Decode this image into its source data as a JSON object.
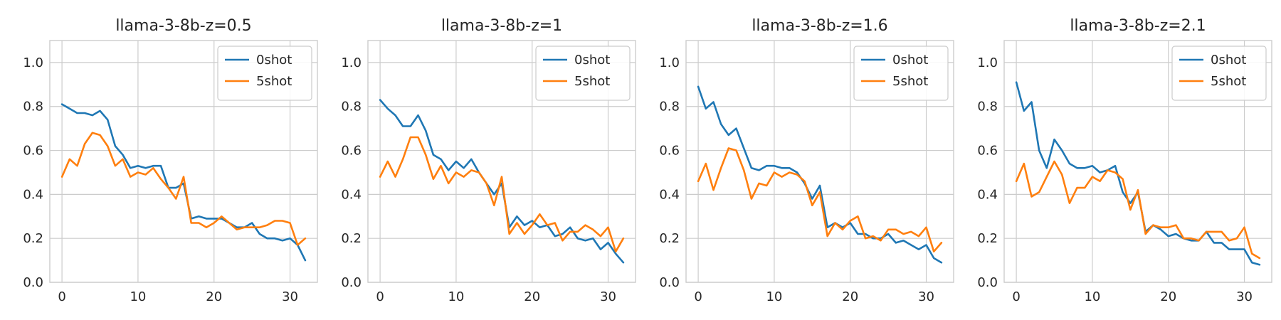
{
  "chart_data": [
    {
      "type": "line",
      "title": "llama-3-8b-z=0.5",
      "xlabel": "",
      "ylabel": "",
      "xlim": [
        -1.6,
        33.6
      ],
      "ylim": [
        0,
        1.1
      ],
      "xticks": [
        0,
        10,
        20,
        30
      ],
      "yticks": [
        0.0,
        0.2,
        0.4,
        0.6,
        0.8,
        1.0
      ],
      "ytick_labels": [
        "0.0",
        "0.2",
        "0.4",
        "0.6",
        "0.8",
        "1.0"
      ],
      "grid": true,
      "legend_position": "top-right",
      "series": [
        {
          "name": "0shot",
          "color": "#1f77b4",
          "values": [
            0.81,
            0.79,
            0.77,
            0.77,
            0.76,
            0.78,
            0.74,
            0.62,
            0.58,
            0.52,
            0.53,
            0.52,
            0.53,
            0.53,
            0.43,
            0.43,
            0.45,
            0.29,
            0.3,
            0.29,
            0.29,
            0.29,
            0.27,
            0.25,
            0.25,
            0.27,
            0.22,
            0.2,
            0.2,
            0.19,
            0.2,
            0.17,
            0.1
          ]
        },
        {
          "name": "5shot",
          "color": "#ff7f0e",
          "values": [
            0.48,
            0.56,
            0.53,
            0.63,
            0.68,
            0.67,
            0.62,
            0.53,
            0.56,
            0.48,
            0.5,
            0.49,
            0.52,
            0.47,
            0.43,
            0.38,
            0.48,
            0.27,
            0.27,
            0.25,
            0.27,
            0.3,
            0.27,
            0.24,
            0.25,
            0.25,
            0.25,
            0.26,
            0.28,
            0.28,
            0.27,
            0.17,
            0.2
          ]
        }
      ]
    },
    {
      "type": "line",
      "title": "llama-3-8b-z=1",
      "xlabel": "",
      "ylabel": "",
      "xlim": [
        -1.6,
        33.6
      ],
      "ylim": [
        0,
        1.1
      ],
      "xticks": [
        0,
        10,
        20,
        30
      ],
      "yticks": [
        0.0,
        0.2,
        0.4,
        0.6,
        0.8,
        1.0
      ],
      "ytick_labels": [
        "0.0",
        "0.2",
        "0.4",
        "0.6",
        "0.8",
        "1.0"
      ],
      "grid": true,
      "legend_position": "top-right",
      "series": [
        {
          "name": "0shot",
          "color": "#1f77b4",
          "values": [
            0.83,
            0.79,
            0.76,
            0.71,
            0.71,
            0.76,
            0.69,
            0.58,
            0.56,
            0.51,
            0.55,
            0.52,
            0.56,
            0.5,
            0.45,
            0.4,
            0.45,
            0.25,
            0.3,
            0.26,
            0.28,
            0.25,
            0.26,
            0.21,
            0.22,
            0.25,
            0.2,
            0.19,
            0.2,
            0.15,
            0.18,
            0.13,
            0.09
          ]
        },
        {
          "name": "5shot",
          "color": "#ff7f0e",
          "values": [
            0.48,
            0.55,
            0.48,
            0.56,
            0.66,
            0.66,
            0.58,
            0.47,
            0.53,
            0.45,
            0.5,
            0.48,
            0.51,
            0.5,
            0.45,
            0.35,
            0.48,
            0.22,
            0.27,
            0.22,
            0.26,
            0.31,
            0.26,
            0.27,
            0.19,
            0.23,
            0.23,
            0.26,
            0.24,
            0.21,
            0.25,
            0.14,
            0.2
          ]
        }
      ]
    },
    {
      "type": "line",
      "title": "llama-3-8b-z=1.6",
      "xlabel": "",
      "ylabel": "",
      "xlim": [
        -1.6,
        33.6
      ],
      "ylim": [
        0,
        1.1
      ],
      "xticks": [
        0,
        10,
        20,
        30
      ],
      "yticks": [
        0.0,
        0.2,
        0.4,
        0.6,
        0.8,
        1.0
      ],
      "ytick_labels": [
        "0.0",
        "0.2",
        "0.4",
        "0.6",
        "0.8",
        "1.0"
      ],
      "grid": true,
      "legend_position": "top-right",
      "series": [
        {
          "name": "0shot",
          "color": "#1f77b4",
          "values": [
            0.89,
            0.79,
            0.82,
            0.72,
            0.67,
            0.7,
            0.61,
            0.52,
            0.51,
            0.53,
            0.53,
            0.52,
            0.52,
            0.5,
            0.45,
            0.38,
            0.44,
            0.25,
            0.27,
            0.25,
            0.27,
            0.22,
            0.22,
            0.2,
            0.2,
            0.22,
            0.18,
            0.19,
            0.17,
            0.15,
            0.17,
            0.11,
            0.09
          ]
        },
        {
          "name": "5shot",
          "color": "#ff7f0e",
          "values": [
            0.46,
            0.54,
            0.42,
            0.52,
            0.61,
            0.6,
            0.51,
            0.38,
            0.45,
            0.44,
            0.5,
            0.48,
            0.5,
            0.49,
            0.46,
            0.35,
            0.41,
            0.21,
            0.27,
            0.24,
            0.28,
            0.3,
            0.2,
            0.21,
            0.19,
            0.24,
            0.24,
            0.22,
            0.23,
            0.21,
            0.25,
            0.14,
            0.18
          ]
        }
      ]
    },
    {
      "type": "line",
      "title": "llama-3-8b-z=2.1",
      "xlabel": "",
      "ylabel": "",
      "xlim": [
        -1.6,
        33.6
      ],
      "ylim": [
        0,
        1.1
      ],
      "xticks": [
        0,
        10,
        20,
        30
      ],
      "yticks": [
        0.0,
        0.2,
        0.4,
        0.6,
        0.8,
        1.0
      ],
      "ytick_labels": [
        "0.0",
        "0.2",
        "0.4",
        "0.6",
        "0.8",
        "1.0"
      ],
      "grid": true,
      "legend_position": "top-right",
      "series": [
        {
          "name": "0shot",
          "color": "#1f77b4",
          "values": [
            0.91,
            0.78,
            0.82,
            0.6,
            0.52,
            0.65,
            0.6,
            0.54,
            0.52,
            0.52,
            0.53,
            0.5,
            0.51,
            0.53,
            0.41,
            0.36,
            0.41,
            0.23,
            0.26,
            0.24,
            0.21,
            0.22,
            0.2,
            0.19,
            0.19,
            0.23,
            0.18,
            0.18,
            0.15,
            0.15,
            0.15,
            0.09,
            0.08
          ]
        },
        {
          "name": "5shot",
          "color": "#ff7f0e",
          "values": [
            0.46,
            0.54,
            0.39,
            0.41,
            0.48,
            0.55,
            0.49,
            0.36,
            0.43,
            0.43,
            0.48,
            0.46,
            0.51,
            0.5,
            0.47,
            0.33,
            0.42,
            0.22,
            0.26,
            0.25,
            0.25,
            0.26,
            0.2,
            0.2,
            0.19,
            0.23,
            0.23,
            0.23,
            0.19,
            0.2,
            0.25,
            0.13,
            0.11
          ]
        }
      ]
    }
  ]
}
